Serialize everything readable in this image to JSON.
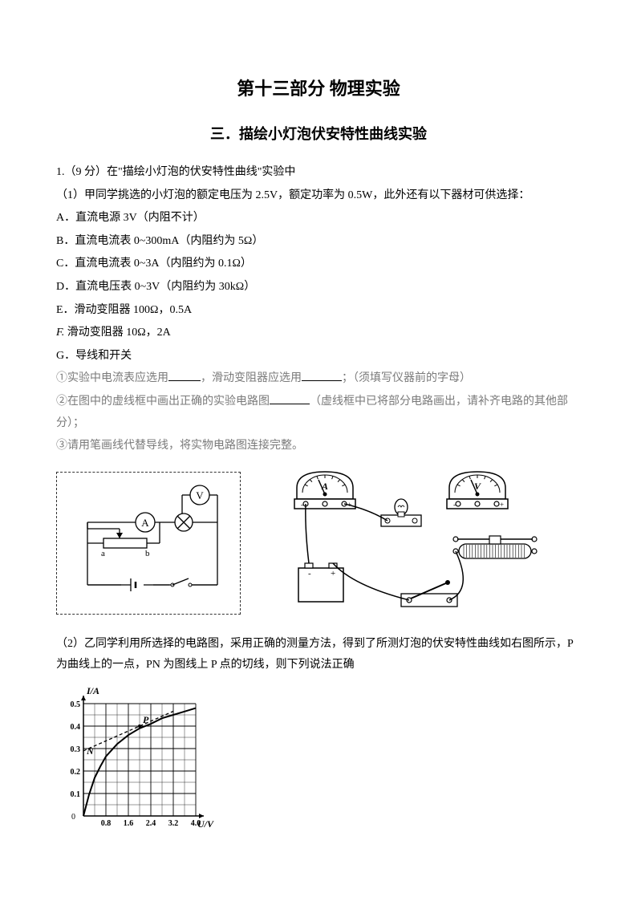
{
  "title_main": "第十三部分  物理实验",
  "title_sub": "三．描绘小灯泡伏安特性曲线实验",
  "q1_line1": "1.（9 分）在\"描绘小灯泡的伏安特性曲线\"实验中",
  "q1_line2": "（1）甲同学挑选的小灯泡的额定电压为 2.5V，额定功率为 0.5W，此外还有以下器材可供选择：",
  "optA": "A．直流电源 3V（内阻不计）",
  "optB": "B．直流电流表 0~300mA（内阻约为 5Ω）",
  "optC": "C．直流电流表 0~3A（内阻约为 0.1Ω）",
  "optD": "D．直流电压表 0~3V（内阻约为 30kΩ）",
  "optE": "E．滑动变阻器 100Ω，0.5A",
  "optF_prefix": "F.",
  "optF_text": " 滑动变阻器 10Ω，2A",
  "optG": "G．导线和开关",
  "sub1_a": "①实验中电流表应选用",
  "sub1_b": "，滑动变阻器应选用",
  "sub1_c": "；（须填写仪器前的字母）",
  "sub2_a": "②在图中的虚线框中画出正确的实验电路图",
  "sub2_b": "（虚线框中已将部分电路画出，请补齐电路的其他部分）；",
  "sub3": "③请用笔画线代替导线，将实物电路图连接完整。",
  "q1_part2_a": "（2）乙同学利用所选择的电路图，采用正确的测量方法，得到了所测灯泡的伏安特性曲线如右图所示，P为曲线上的一点，PN 为图线上 P 点的切线，则下列说法正确",
  "circuit": {
    "label_V": "V",
    "label_A": "A",
    "label_a": "a",
    "label_b": "b",
    "stroke": "#000000",
    "stroke_width": 1.3
  },
  "equip": {
    "meter_A": "A",
    "meter_V": "V",
    "stroke": "#000000",
    "fill": "#ffffff"
  },
  "chart": {
    "type": "line",
    "ylabel": "I/A",
    "xlabel": "U/V",
    "label_P": "P",
    "label_N": "N",
    "xlim": [
      0,
      4.0
    ],
    "ylim": [
      0,
      0.5
    ],
    "xticks": [
      "0",
      "0.8",
      "1.6",
      "2.4",
      "3.2",
      "4.0"
    ],
    "yticks": [
      "0",
      "0.1",
      "0.2",
      "0.3",
      "0.4",
      "0.5"
    ],
    "grid_minor": 10,
    "grid_major": 5,
    "curve_points": [
      [
        0,
        0
      ],
      [
        0.2,
        0.095
      ],
      [
        0.4,
        0.17
      ],
      [
        0.6,
        0.22
      ],
      [
        0.8,
        0.265
      ],
      [
        1.2,
        0.32
      ],
      [
        1.6,
        0.36
      ],
      [
        2.0,
        0.39
      ],
      [
        2.4,
        0.41
      ],
      [
        2.8,
        0.435
      ],
      [
        3.2,
        0.45
      ],
      [
        3.6,
        0.465
      ],
      [
        4.0,
        0.48
      ]
    ],
    "tangent_N": [
      0,
      0.29
    ],
    "tangent_P": [
      2.0,
      0.4
    ],
    "point_P": [
      2.0,
      0.4
    ],
    "stroke": "#000000",
    "grid_color": "#000000",
    "axis_width": 1.5,
    "curve_width": 2,
    "bg": "#ffffff"
  }
}
